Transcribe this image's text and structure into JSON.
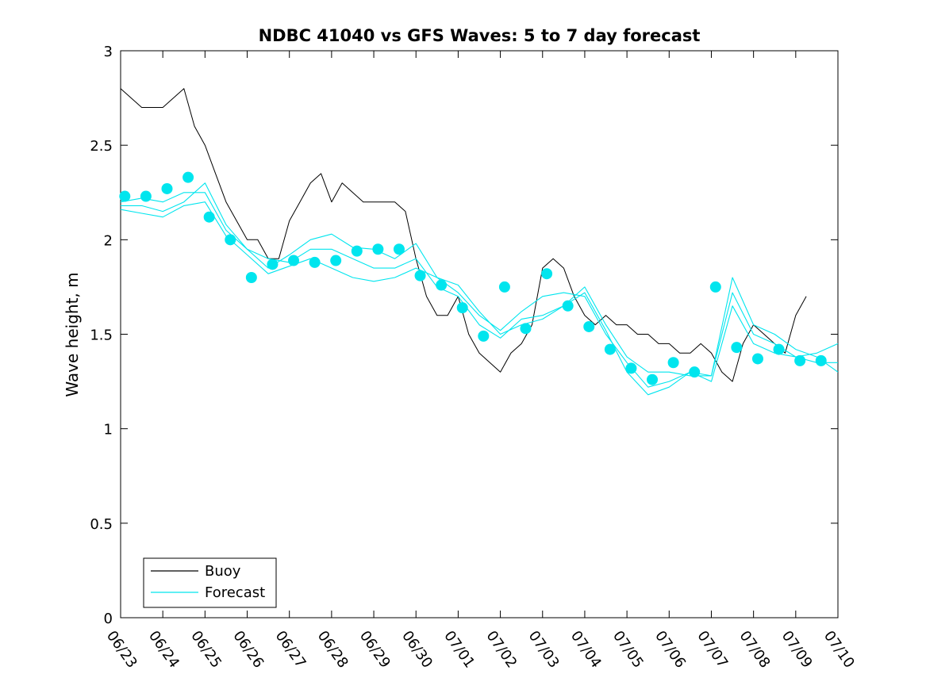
{
  "chart_data": {
    "type": "line",
    "title": "NDBC 41040 vs GFS Waves: 5 to 7 day forecast",
    "xlabel": "",
    "ylabel": "Wave height, m",
    "xlim": [
      0,
      17
    ],
    "ylim": [
      0,
      3
    ],
    "x_tick_labels": [
      "06/23",
      "06/24",
      "06/25",
      "06/26",
      "06/27",
      "06/28",
      "06/29",
      "06/30",
      "07/01",
      "07/02",
      "07/03",
      "07/04",
      "07/05",
      "07/06",
      "07/07",
      "07/08",
      "07/09",
      "07/10"
    ],
    "y_ticks": [
      0,
      0.5,
      1,
      1.5,
      2,
      2.5,
      3
    ],
    "y_tick_labels": [
      "0",
      "0.5",
      "1",
      "1.5",
      "2",
      "2.5",
      "3"
    ],
    "grid": false,
    "legend_position": "bottom-left",
    "legend": [
      {
        "label": "Buoy",
        "color": "#000000"
      },
      {
        "label": "Forecast",
        "color": "#00e5ee"
      }
    ],
    "series": [
      {
        "name": "Buoy",
        "color": "#000000",
        "style": "line",
        "x": [
          0.0,
          0.25,
          0.5,
          0.75,
          1.0,
          1.25,
          1.5,
          1.75,
          2.0,
          2.25,
          2.5,
          2.75,
          3.0,
          3.25,
          3.5,
          3.75,
          4.0,
          4.25,
          4.5,
          4.75,
          5.0,
          5.25,
          5.5,
          5.75,
          6.0,
          6.25,
          6.5,
          6.75,
          7.0,
          7.25,
          7.5,
          7.75,
          8.0,
          8.25,
          8.5,
          8.75,
          9.0,
          9.25,
          9.5,
          9.75,
          10.0,
          10.25,
          10.5,
          10.75,
          11.0,
          11.25,
          11.5,
          11.75,
          12.0,
          12.25,
          12.5,
          12.75,
          13.0,
          13.25,
          13.5,
          13.75,
          14.0,
          14.25,
          14.5,
          14.75,
          15.0,
          15.25,
          15.5,
          15.75,
          16.0,
          16.25
        ],
        "y": [
          2.8,
          2.75,
          2.7,
          2.7,
          2.7,
          2.75,
          2.8,
          2.6,
          2.5,
          2.35,
          2.2,
          2.1,
          2.0,
          2.0,
          1.9,
          1.9,
          2.1,
          2.2,
          2.3,
          2.35,
          2.2,
          2.3,
          2.25,
          2.2,
          2.2,
          2.2,
          2.2,
          2.15,
          1.9,
          1.7,
          1.6,
          1.6,
          1.7,
          1.5,
          1.4,
          1.35,
          1.3,
          1.4,
          1.45,
          1.55,
          1.85,
          1.9,
          1.85,
          1.7,
          1.6,
          1.55,
          1.6,
          1.55,
          1.55,
          1.5,
          1.5,
          1.45,
          1.45,
          1.4,
          1.4,
          1.45,
          1.4,
          1.3,
          1.25,
          1.45,
          1.55,
          1.5,
          1.45,
          1.4,
          1.6,
          1.7
        ]
      },
      {
        "name": "Forecast",
        "color": "#00e5ee",
        "style": "line",
        "x": [
          0.0,
          0.5,
          1.0,
          1.5,
          2.0,
          2.5,
          3.0,
          3.5,
          4.0,
          4.5,
          5.0,
          5.5,
          6.0,
          6.5,
          7.0,
          7.5,
          8.0,
          8.5,
          9.0,
          9.5,
          10.0,
          10.5,
          11.0,
          11.5,
          12.0,
          12.5,
          13.0,
          13.5,
          14.0,
          14.5,
          15.0,
          15.5,
          16.0,
          16.5,
          17.0
        ],
        "y": [
          2.2,
          2.22,
          2.2,
          2.25,
          2.25,
          2.05,
          1.95,
          1.9,
          1.88,
          1.95,
          1.95,
          1.9,
          1.85,
          1.85,
          1.9,
          1.75,
          1.7,
          1.55,
          1.48,
          1.58,
          1.6,
          1.65,
          1.75,
          1.55,
          1.38,
          1.3,
          1.3,
          1.28,
          1.28,
          1.72,
          1.5,
          1.45,
          1.38,
          1.35,
          1.35
        ]
      },
      {
        "name": "",
        "color": "#00e5ee",
        "style": "line",
        "x": [
          0.0,
          0.5,
          1.0,
          1.5,
          2.0,
          2.5,
          3.0,
          3.5,
          4.0,
          4.5,
          5.0,
          5.5,
          6.0,
          6.5,
          7.0,
          7.5,
          8.0,
          8.5,
          9.0,
          9.5,
          10.0,
          10.5,
          11.0,
          11.5,
          12.0,
          12.5,
          13.0,
          13.5,
          14.0,
          14.5,
          15.0,
          15.5,
          16.0,
          16.5,
          17.0
        ],
        "y": [
          2.18,
          2.18,
          2.15,
          2.2,
          2.3,
          2.08,
          1.95,
          1.85,
          1.92,
          2.0,
          2.03,
          1.96,
          1.95,
          1.9,
          1.98,
          1.8,
          1.72,
          1.6,
          1.52,
          1.62,
          1.7,
          1.72,
          1.7,
          1.5,
          1.35,
          1.22,
          1.25,
          1.3,
          1.28,
          1.8,
          1.55,
          1.5,
          1.42,
          1.38,
          1.3
        ]
      },
      {
        "name": "",
        "color": "#00e5ee",
        "style": "line",
        "x": [
          0.0,
          0.5,
          1.0,
          1.5,
          2.0,
          2.5,
          3.0,
          3.5,
          4.0,
          4.5,
          5.0,
          5.5,
          6.0,
          6.5,
          7.0,
          7.5,
          8.0,
          8.5,
          9.0,
          9.5,
          10.0,
          10.5,
          11.0,
          11.5,
          12.0,
          12.5,
          13.0,
          13.5,
          14.0,
          14.5,
          15.0,
          15.5,
          16.0,
          16.5,
          17.0
        ],
        "y": [
          2.16,
          2.14,
          2.12,
          2.18,
          2.2,
          2.02,
          1.92,
          1.82,
          1.86,
          1.9,
          1.85,
          1.8,
          1.78,
          1.8,
          1.85,
          1.8,
          1.76,
          1.62,
          1.5,
          1.55,
          1.58,
          1.65,
          1.72,
          1.52,
          1.3,
          1.18,
          1.22,
          1.3,
          1.25,
          1.65,
          1.45,
          1.4,
          1.38,
          1.4,
          1.45
        ]
      }
    ],
    "forecast_markers": {
      "name": "",
      "color": "#00e5ee",
      "style": "markers",
      "x": [
        0.1,
        0.6,
        1.1,
        1.6,
        2.1,
        2.6,
        3.1,
        3.6,
        4.1,
        4.6,
        5.1,
        5.6,
        6.1,
        6.6,
        7.1,
        7.6,
        8.1,
        8.6,
        9.1,
        9.6,
        10.1,
        10.6,
        11.1,
        11.6,
        12.1,
        12.6,
        13.1,
        13.6,
        14.1,
        14.6,
        15.1,
        15.6,
        16.1,
        16.6
      ],
      "y": [
        2.23,
        2.23,
        2.27,
        2.33,
        2.12,
        2.0,
        1.8,
        1.87,
        1.89,
        1.88,
        1.89,
        1.94,
        1.95,
        1.95,
        1.81,
        1.76,
        1.64,
        1.49,
        1.75,
        1.53,
        1.82,
        1.65,
        1.54,
        1.42,
        1.32,
        1.26,
        1.35,
        1.3,
        1.75,
        1.43,
        1.37,
        1.42,
        1.36,
        1.36
      ]
    }
  }
}
